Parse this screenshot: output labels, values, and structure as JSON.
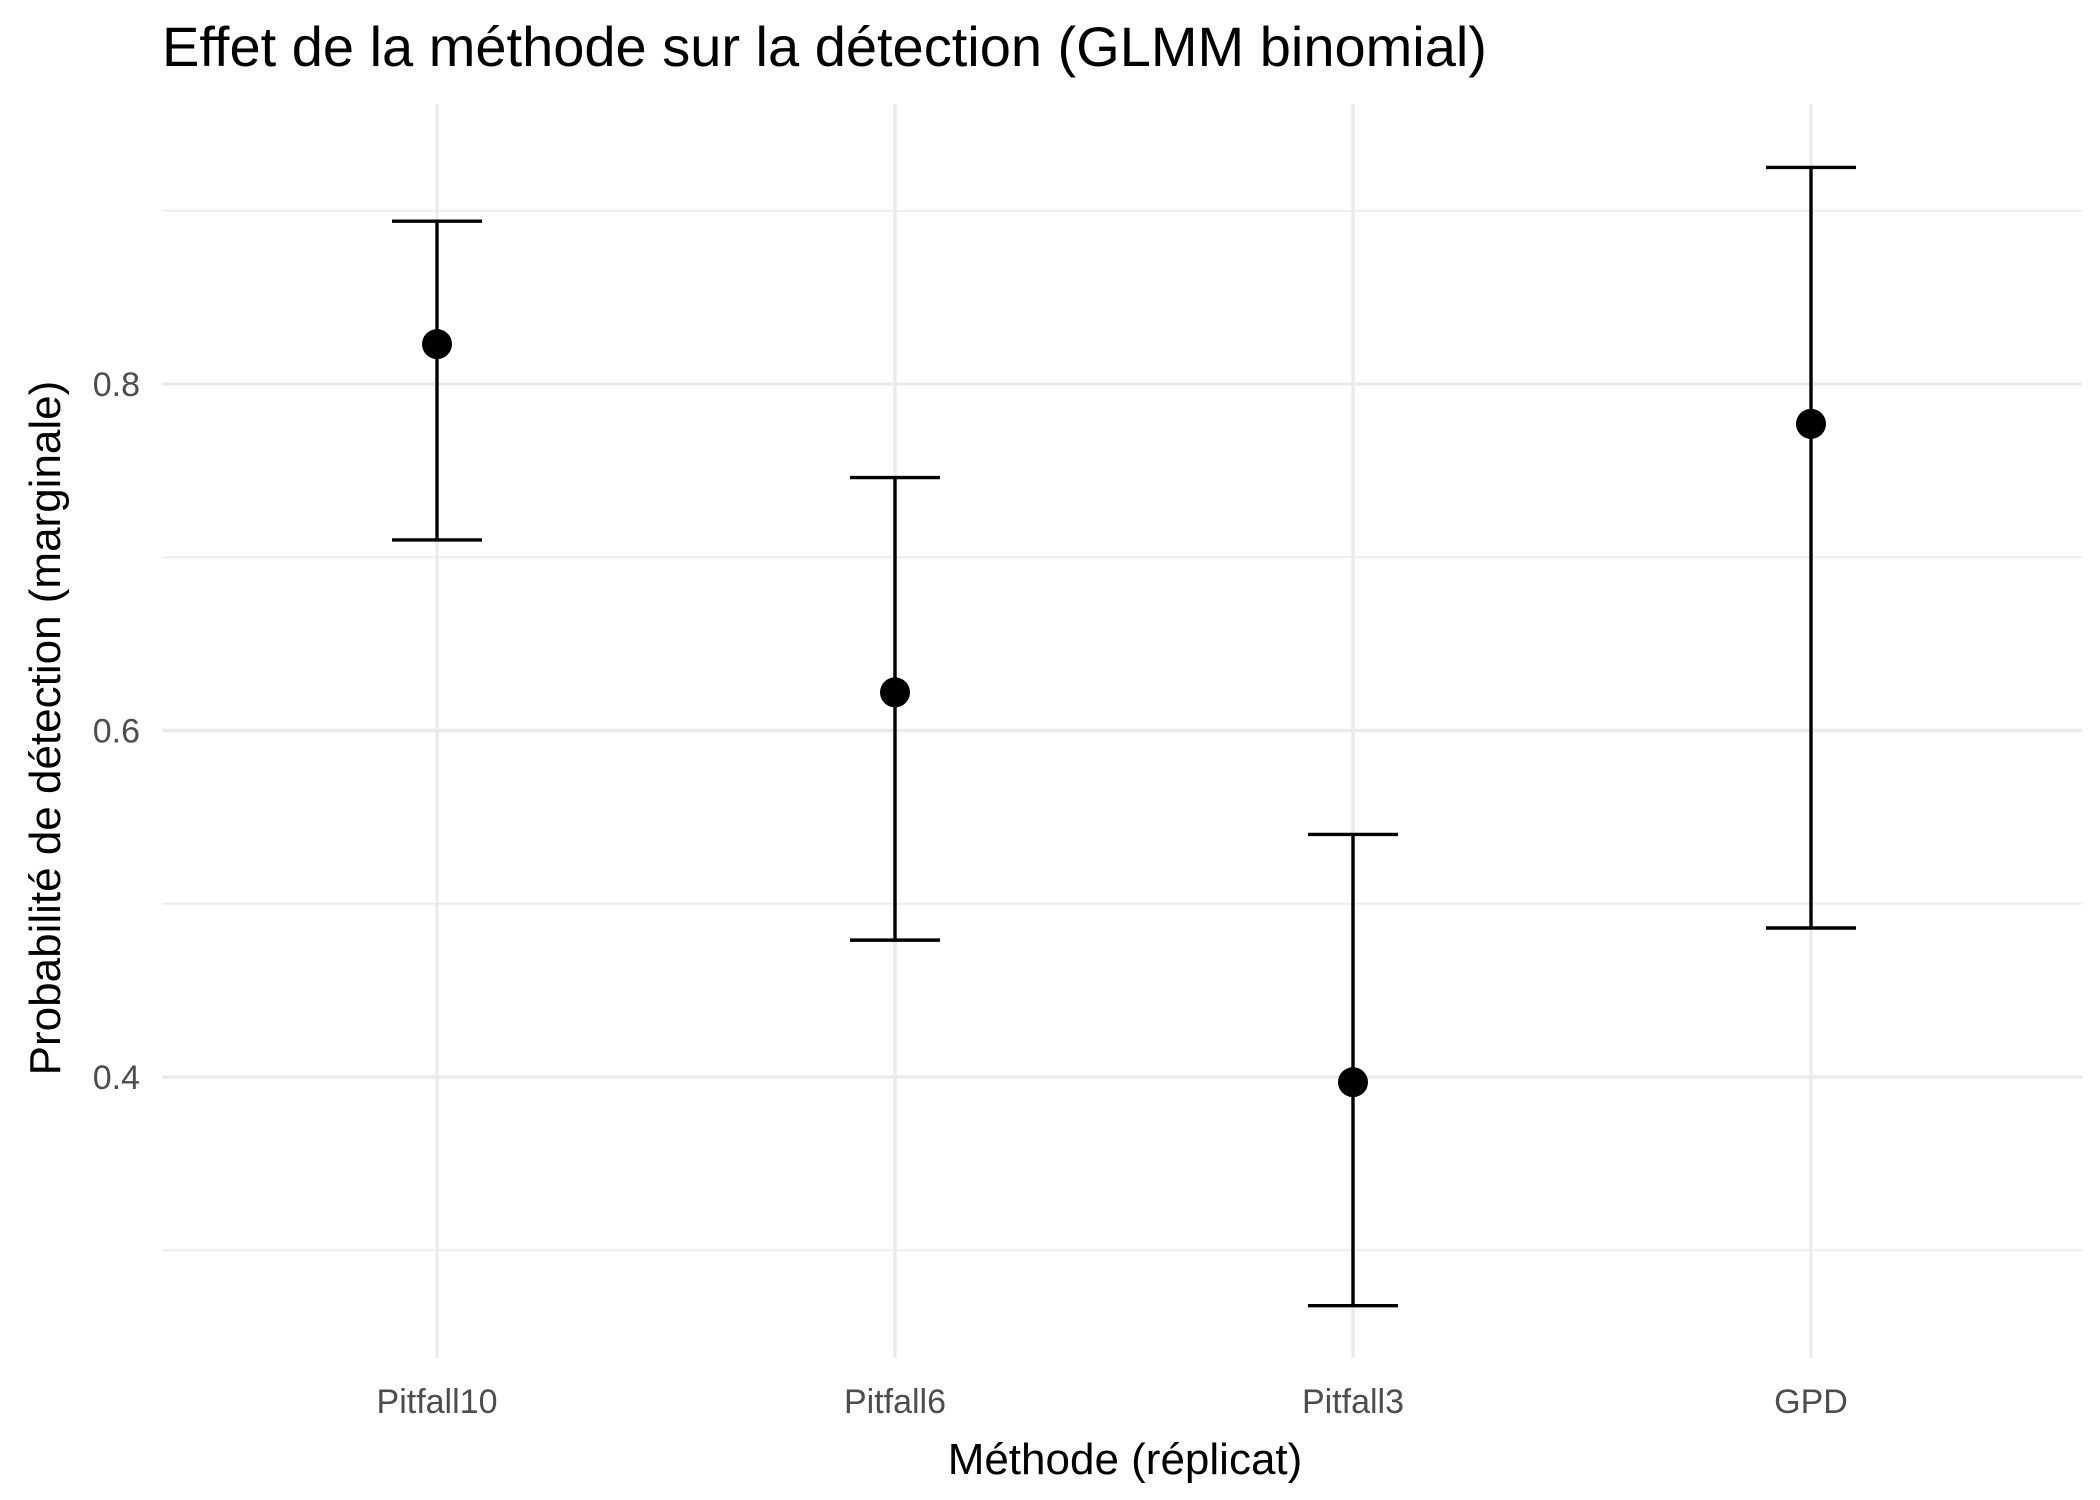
{
  "chart_data": {
    "type": "scatter",
    "title": "Effet de la méthode sur la détection (GLMM binomial)",
    "xlabel": "Méthode (réplicat)",
    "ylabel": "Probabilité de détection (marginale)",
    "categories": [
      "Pitfall10",
      "Pitfall6",
      "Pitfall3",
      "GPD"
    ],
    "estimate": [
      0.823,
      0.622,
      0.397,
      0.777
    ],
    "lower": [
      0.71,
      0.479,
      0.268,
      0.486
    ],
    "upper": [
      0.894,
      0.746,
      0.54,
      0.925
    ],
    "yticks": [
      0.4,
      0.6,
      0.8
    ],
    "ytick_labels": [
      "0.4",
      "0.6",
      "0.8"
    ],
    "yminor": [
      0.3,
      0.5,
      0.7,
      0.9
    ],
    "ylim": [
      0.233,
      0.96
    ],
    "grid": true,
    "legend": "none",
    "colors": {
      "point": "#000000",
      "grid": "#ebebeb",
      "tick_text": "#4d4d4d"
    }
  }
}
